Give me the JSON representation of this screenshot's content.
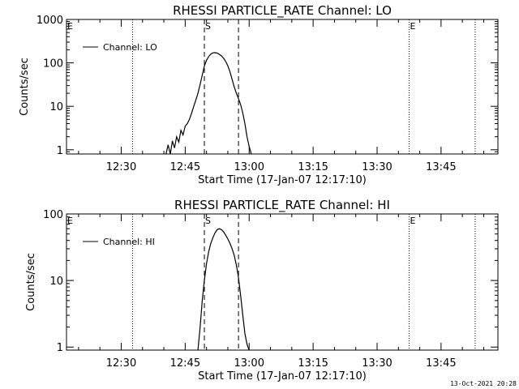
{
  "footer": {
    "timestamp": "13-Oct-2021 20:28"
  },
  "chart_data": [
    {
      "type": "line",
      "title": "RHESSI PARTICLE_RATE Channel: LO",
      "xlabel": "Start Time (17-Jan-07 12:17:10)",
      "ylabel": "Counts/sec",
      "yscale": "log",
      "ylim": [
        0.8,
        1000
      ],
      "xlim": [
        "12:17:10",
        "13:58:20"
      ],
      "xticks": [
        "12:30",
        "12:45",
        "13:00",
        "13:15",
        "13:30",
        "13:45"
      ],
      "yticks": [
        "1",
        "10",
        "100",
        "1000"
      ],
      "legend": {
        "label": "Channel: LO",
        "placement": "top-left"
      },
      "markers": [
        {
          "label": "E",
          "time": "12:17:10",
          "style": "dotted"
        },
        {
          "label": "",
          "time": "12:32:40",
          "style": "dotted"
        },
        {
          "label": "S",
          "time": "12:49:30",
          "style": "dashed"
        },
        {
          "label": "",
          "time": "12:57:30",
          "style": "dashed"
        },
        {
          "label": "E",
          "time": "13:37:30",
          "style": "dotted"
        },
        {
          "label": "",
          "time": "13:53:00",
          "style": "dotted"
        }
      ],
      "series": [
        {
          "name": "Channel: LO",
          "x": [
            "12:40:30",
            "12:41:00",
            "12:41:30",
            "12:42:00",
            "12:42:30",
            "12:43:00",
            "12:43:30",
            "12:44:00",
            "12:44:30",
            "12:45:00",
            "12:45:30",
            "12:46:00",
            "12:46:30",
            "12:47:00",
            "12:47:30",
            "12:48:00",
            "12:48:30",
            "12:49:00",
            "12:49:30",
            "12:50:00",
            "12:50:30",
            "12:51:00",
            "12:51:30",
            "12:52:00",
            "12:52:30",
            "12:53:00",
            "12:53:30",
            "12:54:00",
            "12:54:30",
            "12:55:00",
            "12:55:30",
            "12:56:00",
            "12:56:30",
            "12:57:00",
            "12:57:30",
            "12:58:00",
            "12:58:30",
            "12:59:00",
            "12:59:30",
            "13:00:00",
            "13:00:30"
          ],
          "values": [
            0.8,
            1.3,
            0.8,
            1.6,
            1.1,
            2.0,
            1.5,
            2.8,
            2.2,
            3.5,
            4.0,
            5.0,
            7.0,
            10,
            14,
            20,
            32,
            52,
            85,
            115,
            140,
            160,
            170,
            172,
            168,
            158,
            145,
            128,
            108,
            85,
            62,
            42,
            28,
            20,
            15,
            11,
            7,
            4,
            2,
            1.2,
            0.8
          ]
        }
      ]
    },
    {
      "type": "line",
      "title": "RHESSI PARTICLE_RATE Channel: HI",
      "xlabel": "Start Time (17-Jan-07 12:17:10)",
      "ylabel": "Counts/sec",
      "yscale": "log",
      "ylim": [
        0.9,
        100
      ],
      "xlim": [
        "12:17:10",
        "13:58:20"
      ],
      "xticks": [
        "12:30",
        "12:45",
        "13:00",
        "13:15",
        "13:30",
        "13:45"
      ],
      "yticks": [
        "1",
        "10",
        "100"
      ],
      "legend": {
        "label": "Channel: HI",
        "placement": "top-left"
      },
      "markers": [
        {
          "label": "E",
          "time": "12:17:10",
          "style": "dotted"
        },
        {
          "label": "",
          "time": "12:32:40",
          "style": "dotted"
        },
        {
          "label": "S",
          "time": "12:49:30",
          "style": "dashed"
        },
        {
          "label": "",
          "time": "12:57:30",
          "style": "dashed"
        },
        {
          "label": "E",
          "time": "13:37:30",
          "style": "dotted"
        },
        {
          "label": "",
          "time": "13:53:00",
          "style": "dotted"
        }
      ],
      "series": [
        {
          "name": "Channel: HI",
          "x": [
            "12:48:00",
            "12:48:30",
            "12:49:00",
            "12:49:30",
            "12:50:00",
            "12:50:30",
            "12:51:00",
            "12:51:30",
            "12:52:00",
            "12:52:30",
            "12:53:00",
            "12:53:30",
            "12:54:00",
            "12:54:30",
            "12:55:00",
            "12:55:30",
            "12:56:00",
            "12:56:30",
            "12:57:00",
            "12:57:30",
            "12:58:00",
            "12:58:30",
            "12:59:00",
            "12:59:30",
            "13:00:00"
          ],
          "values": [
            0.9,
            2,
            5,
            10,
            18,
            27,
            36,
            44,
            52,
            58,
            60,
            58,
            54,
            48,
            42,
            36,
            30,
            24,
            17,
            11,
            6,
            3,
            1.6,
            1.1,
            0.9
          ]
        }
      ]
    }
  ]
}
